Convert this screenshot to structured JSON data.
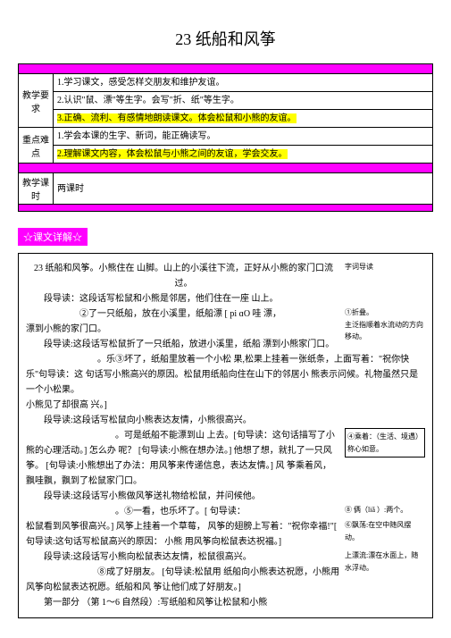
{
  "title": "23 纸船和风筝",
  "table": {
    "row1_label": "教学要求",
    "row1_content": "1.学习课文，感受怎样交朋友和维护友谊。\n2.认识\"鼠、漂\"等生字。会写\"折、纸\"等生字。\n3.正确、流利、有感情地朗读课文。体会松鼠和小熊的友谊。",
    "row2_label": "重点难点",
    "row2_line1": "1.学会本课的生字、新词，能正确读写。",
    "row2_line2": "2.理解课文内容，体会松鼠与小熊之间的友谊，学会交友。",
    "row3_label": "教学课时",
    "row3_content": "两课时"
  },
  "section_label": "☆课文详解☆",
  "body": {
    "heading": "23 纸船和风筝",
    "intro": "。小熊住在  山脚。山上的小溪往下流，正好从小熊的家门口流过。",
    "para1_lead": "段导读：这段话写松鼠和小熊是邻居，他们住在一座  山上。",
    "side1": "字词导读",
    "para2": "②了一只纸船，放在小溪里，纸船漂 [ pi ɑO 哇  漂，",
    "side2": "①折叠。",
    "para3": "漂到小熊的家门口。",
    "para3b": "段导读:这段话写松鼠折了一只纸船，放进小溪里，纸船  漂到小熊家门口。",
    "side3": "主泛指顺着水流动的方向移动。",
    "para4": "。乐③坏了，纸船里放着一个小松  果,松果上挂着一张纸条，上面写着：\"祝你快乐\"句导读：这  句话写小熊高兴的原因。松鼠用纸船向住在山下的邻居小  熊表示问候。礼物虽然只是一个小松果。",
    "para5": "小熊见了却很高  兴。]",
    "para6_lead": "段导读:这段话写松鼠向小熊表达友情，小熊很高兴。",
    "para7": "。可是纸船不能漂到山  上去。[句导读：这句话描写了小熊的心理活动。]  怎么办  呢？ [句导读:小熊在想办法。]  他想了想，就扎了一只风筝。  [句导读:小熊想出了办法：用风筝来传递信息，表达友情。]  风  筝乘着风，",
    "side4": "④乘着：（生活、境遇）称心如意。",
    "para8": "飘哇飘，飘到了松鼠家门口。",
    "para9_lead": "段导读:这段话写小熊做风筝送礼物给松鼠，并问候他。",
    "para10": "。⑤一看，也乐坏了。[  句导读：",
    "side5": "⑧  俩（liǎ  ）:两个。",
    "para11": "松鼠看到风筝很高兴。]  风筝上挂着一个草莓，  风筝的翅膀上写着：\"祝你幸福!\"[  句导读:这句话写松鼠高兴的原因：  小熊  用风筝向松鼠表达祝福。]",
    "side6": "⑥飘荡:在空中随风摆动。",
    "para12_lead": "段导读:这段话写小熊向松鼠表达友情，松鼠很高兴。",
    "para13": "⑧成了好朋友。  [句导读:松鼠用  纸船向小熊表达祝愿，小熊用风筝向松鼠表达祝愿。纸船和风  筝让他们成了好朋友。]",
    "side7": "上漂流:漂在水面上，随水浮动。",
    "final": "第一部分  （第 1～6 自然段）:写纸船和风筝让松鼠和小熊"
  },
  "colors": {
    "magenta": "#ff00ff",
    "yellow_highlight": "#ffff00",
    "white": "#ffffff",
    "black": "#000000"
  }
}
